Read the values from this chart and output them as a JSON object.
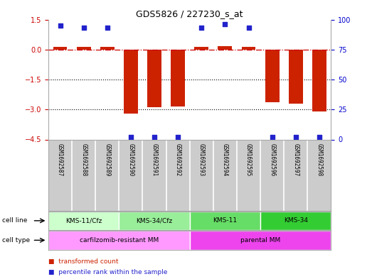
{
  "title": "GDS5826 / 227230_s_at",
  "samples": [
    "GSM1692587",
    "GSM1692588",
    "GSM1692589",
    "GSM1692590",
    "GSM1692591",
    "GSM1692592",
    "GSM1692593",
    "GSM1692594",
    "GSM1692595",
    "GSM1692596",
    "GSM1692597",
    "GSM1692598"
  ],
  "transformed_count": [
    0.15,
    0.12,
    0.12,
    -3.2,
    -2.9,
    -2.85,
    0.12,
    0.18,
    0.12,
    -2.65,
    -2.7,
    -3.1
  ],
  "percentile_rank": [
    95,
    93,
    93,
    2,
    2,
    2,
    93,
    96,
    93,
    2,
    2,
    2
  ],
  "ylim_left": [
    -4.5,
    1.5
  ],
  "ylim_right": [
    0,
    100
  ],
  "yticks_left": [
    1.5,
    0,
    -1.5,
    -3,
    -4.5
  ],
  "yticks_right": [
    100,
    75,
    50,
    25,
    0
  ],
  "cell_line_groups": [
    {
      "label": "KMS-11/Cfz",
      "start": 0,
      "end": 3
    },
    {
      "label": "KMS-34/Cfz",
      "start": 3,
      "end": 6
    },
    {
      "label": "KMS-11",
      "start": 6,
      "end": 9
    },
    {
      "label": "KMS-34",
      "start": 9,
      "end": 12
    }
  ],
  "cell_line_colors": [
    "#ccffcc",
    "#99ee99",
    "#66dd66",
    "#33cc33"
  ],
  "cell_type_groups": [
    {
      "label": "carfilzomib-resistant MM",
      "start": 0,
      "end": 6
    },
    {
      "label": "parental MM",
      "start": 6,
      "end": 12
    }
  ],
  "cell_type_colors": [
    "#ff99ff",
    "#ee44ee"
  ],
  "bar_color": "#cc2200",
  "dot_color": "#2222cc",
  "ref_line_color": "#cc0000",
  "grid_color": "#000000",
  "sample_box_color": "#cccccc",
  "legend_items": [
    {
      "label": "transformed count",
      "color": "#cc2200"
    },
    {
      "label": "percentile rank within the sample",
      "color": "#2222cc"
    }
  ],
  "left_axis_color": "#cc0000",
  "right_axis_color": "#0000cc"
}
